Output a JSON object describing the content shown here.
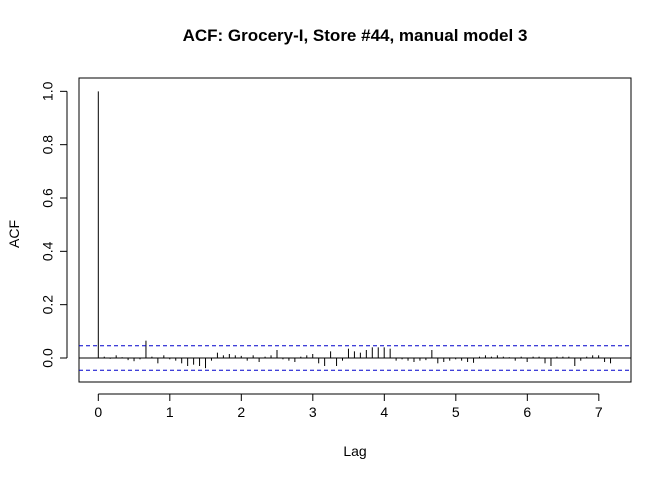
{
  "chart_data": {
    "type": "bar",
    "title": "ACF: Grocery-I, Store #44, manual model 3",
    "xlabel": "Lag",
    "ylabel": "ACF",
    "xlim": [
      -0.27,
      7.45
    ],
    "ylim": [
      -0.09,
      1.05
    ],
    "x_ticks": [
      0,
      1,
      2,
      3,
      4,
      5,
      6,
      7
    ],
    "y_ticks": [
      0.0,
      0.2,
      0.4,
      0.6,
      0.8,
      1.0
    ],
    "y_tick_labels": [
      "0.0",
      "0.2",
      "0.4",
      "0.6",
      "0.8",
      "1.0"
    ],
    "conf_bounds": [
      0.046,
      -0.046
    ],
    "colors": {
      "spike": "#000000",
      "zero_line": "#000000",
      "conf_line": "#0000cc"
    },
    "grid": false,
    "lag_step": 0.0833,
    "acf": [
      1.0,
      0.005,
      -0.003,
      0.01,
      0.003,
      -0.008,
      -0.012,
      -0.005,
      0.065,
      0.005,
      -0.02,
      0.01,
      -0.005,
      -0.01,
      -0.02,
      -0.03,
      -0.025,
      -0.03,
      -0.038,
      -0.01,
      0.02,
      0.01,
      0.015,
      0.01,
      0.008,
      -0.01,
      0.01,
      -0.015,
      0.005,
      0.01,
      0.03,
      -0.005,
      -0.01,
      -0.015,
      0.005,
      0.01,
      0.015,
      -0.02,
      -0.03,
      0.025,
      -0.03,
      -0.01,
      0.035,
      0.025,
      0.02,
      0.03,
      0.04,
      0.04,
      0.04,
      0.035,
      -0.01,
      -0.005,
      -0.01,
      -0.015,
      -0.01,
      -0.008,
      0.03,
      -0.02,
      -0.015,
      -0.01,
      -0.005,
      -0.01,
      -0.015,
      -0.018,
      0.005,
      0.01,
      0.005,
      0.01,
      0.005,
      0.003,
      -0.01,
      0.005,
      -0.015,
      0.005,
      0.005,
      -0.02,
      -0.03,
      0.005,
      0.005,
      0.005,
      -0.03,
      -0.01,
      0.005,
      0.01,
      0.01,
      -0.015,
      -0.02
    ]
  }
}
